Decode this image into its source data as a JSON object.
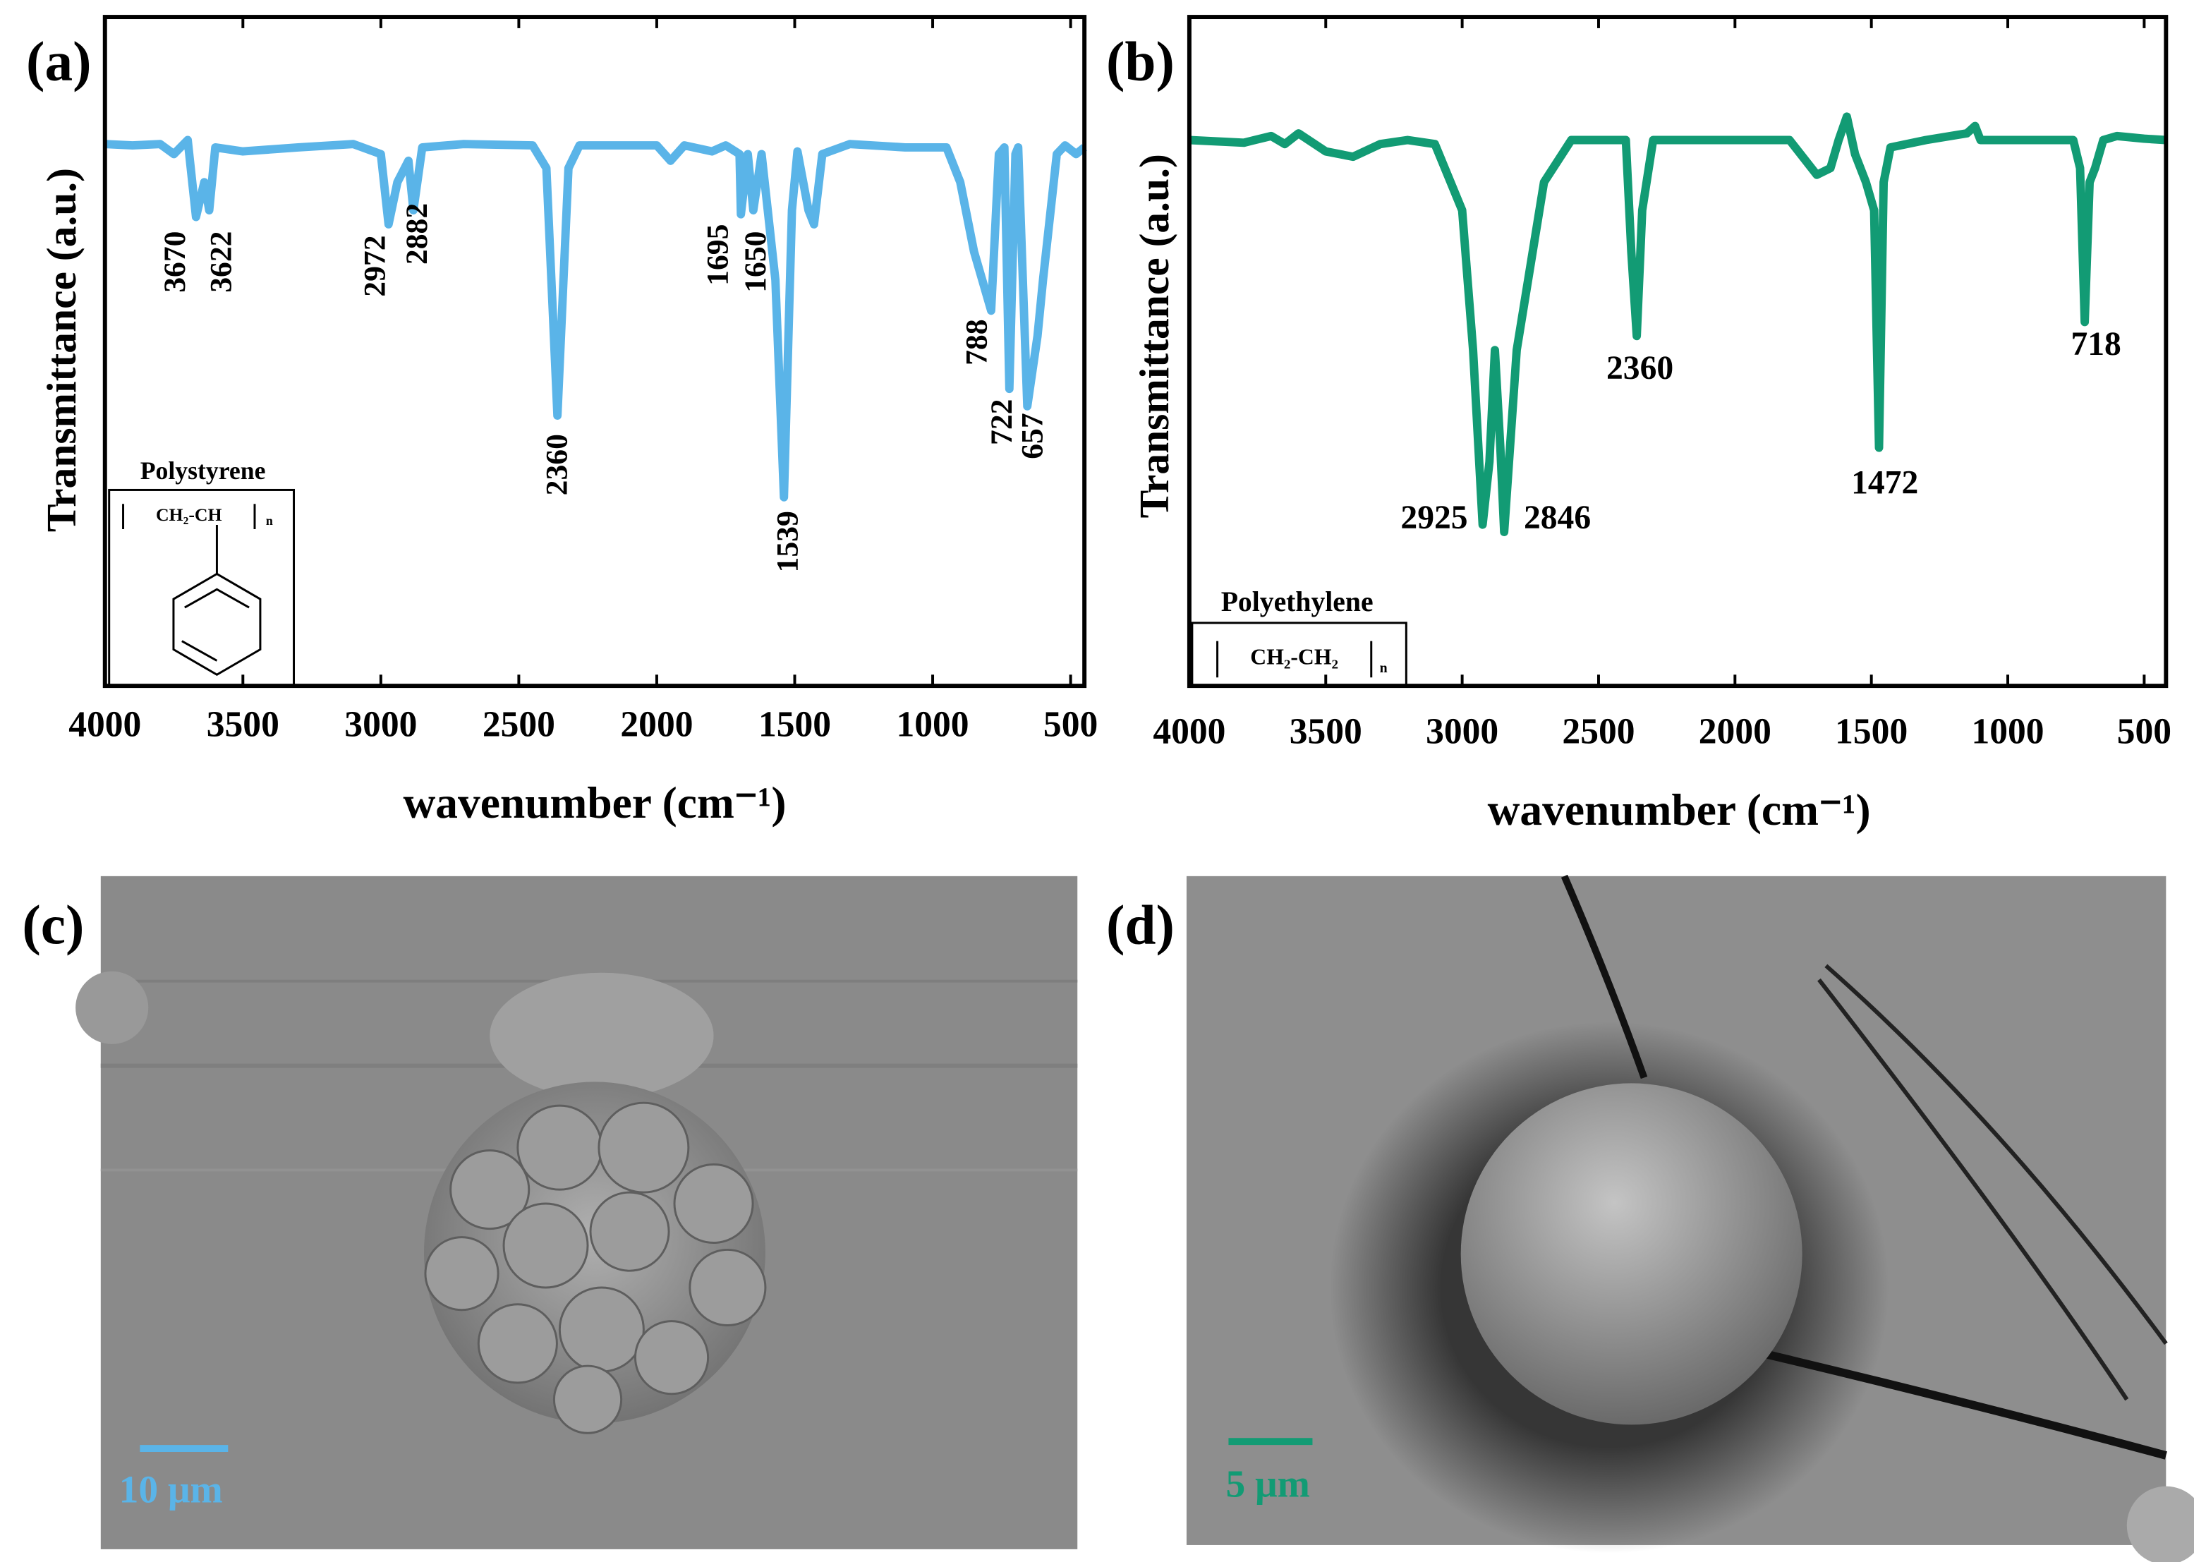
{
  "chart_data": [
    {
      "type": "line",
      "panel_label": "(a)",
      "y_label": "Transmittance (a.u.)",
      "x_label": "wavenumber (cm⁻¹)",
      "x": [
        4000,
        3900,
        3800,
        3750,
        3700,
        3670,
        3640,
        3622,
        3600,
        3500,
        3300,
        3100,
        3000,
        2972,
        2940,
        2900,
        2882,
        2850,
        2700,
        2450,
        2400,
        2360,
        2320,
        2280,
        2000,
        1950,
        1900,
        1800,
        1750,
        1700,
        1695,
        1670,
        1650,
        1620,
        1570,
        1539,
        1510,
        1490,
        1450,
        1430,
        1400,
        1300,
        1100,
        950,
        900,
        850,
        788,
        760,
        740,
        722,
        700,
        690,
        657,
        620,
        600,
        550,
        520,
        480,
        450
      ],
      "series": [
        {
          "name": "Polystyrene",
          "color": "#5ab4e8",
          "values": [
            81.0,
            80.8,
            81.0,
            79.5,
            81.6,
            70.1,
            75.3,
            71.1,
            80.5,
            79.9,
            80.5,
            81.0,
            79.5,
            69.0,
            75.3,
            78.5,
            71.1,
            80.5,
            81.0,
            80.8,
            77.4,
            40.4,
            77.4,
            80.8,
            80.8,
            78.5,
            80.8,
            79.9,
            80.8,
            79.5,
            70.5,
            79.5,
            71.1,
            79.5,
            60.7,
            28.2,
            71.1,
            79.9,
            71.1,
            69.0,
            79.5,
            81.0,
            80.5,
            80.5,
            75.3,
            64.9,
            56.1,
            79.5,
            80.5,
            44.4,
            79.5,
            80.5,
            41.8,
            52.3,
            60.7,
            79.5,
            80.8,
            79.5,
            80.5
          ]
        }
      ],
      "peak_labels": [
        3670,
        3622,
        2972,
        2882,
        2360,
        1695,
        1650,
        1539,
        788,
        722,
        657
      ],
      "structure": {
        "formula": "CH₂-CH",
        "subscript": "n"
      },
      "xlim": [
        4000,
        450
      ],
      "ylim": [
        0,
        100
      ],
      "xticks": [
        4000,
        3500,
        3000,
        2500,
        2000,
        1500,
        1000,
        500
      ]
    },
    {
      "type": "line",
      "panel_label": "(b)",
      "y_label": "Transmittance (a.u.)",
      "x_label": "wavenumber (cm⁻¹)",
      "x": [
        4000,
        3800,
        3700,
        3650,
        3600,
        3500,
        3400,
        3300,
        3200,
        3100,
        3000,
        2960,
        2925,
        2900,
        2880,
        2860,
        2846,
        2800,
        2700,
        2600,
        2400,
        2380,
        2360,
        2340,
        2300,
        2000,
        1800,
        1700,
        1650,
        1620,
        1590,
        1560,
        1520,
        1490,
        1472,
        1455,
        1430,
        1300,
        1150,
        1120,
        1100,
        1000,
        900,
        760,
        735,
        718,
        700,
        680,
        650,
        600,
        500,
        420
      ],
      "series": [
        {
          "name": "Polyethylene",
          "color": "#129b74",
          "values": [
            81.6,
            81.2,
            82.2,
            81.0,
            82.6,
            79.9,
            79.1,
            81.0,
            81.6,
            81.0,
            71.1,
            50.2,
            24.1,
            33.5,
            50.2,
            35.6,
            23.0,
            50.2,
            75.3,
            81.6,
            81.6,
            64.9,
            52.3,
            71.1,
            81.6,
            81.6,
            81.6,
            76.4,
            77.4,
            81.6,
            85.1,
            79.5,
            75.3,
            71.1,
            35.6,
            75.3,
            80.5,
            81.6,
            82.6,
            83.7,
            81.6,
            81.6,
            81.6,
            81.6,
            77.4,
            54.4,
            75.3,
            77.4,
            81.6,
            82.2,
            81.8,
            81.6
          ]
        }
      ],
      "peak_labels": [
        2360,
        2925,
        2846,
        1472,
        718
      ],
      "structure": {
        "formula": "CH₂-CH₂",
        "subscript": "n"
      },
      "xlim": [
        4000,
        420
      ],
      "ylim": [
        0,
        100
      ],
      "xticks": [
        4000,
        3500,
        3000,
        2500,
        2000,
        1500,
        1000,
        500
      ]
    }
  ],
  "images": [
    {
      "panel_label": "(c)",
      "scale_bar": "10 μm"
    },
    {
      "panel_label": "(d)",
      "scale_bar": "5 μm"
    }
  ]
}
